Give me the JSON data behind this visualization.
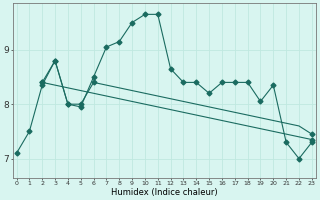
{
  "xlabel": "Humidex (Indice chaleur)",
  "background_color": "#d8f5f0",
  "grid_color": "#c0e8e0",
  "line_color": "#1a6b60",
  "x_ticks": [
    0,
    1,
    2,
    3,
    4,
    5,
    6,
    7,
    8,
    9,
    10,
    11,
    12,
    13,
    14,
    15,
    16,
    17,
    18,
    19,
    20,
    21,
    22,
    23
  ],
  "y_ticks": [
    7,
    8,
    9
  ],
  "ylim": [
    6.65,
    9.85
  ],
  "xlim": [
    -0.3,
    23.3
  ],
  "series1_x": [
    0,
    1,
    2,
    3,
    4,
    5,
    6,
    7,
    8,
    9,
    10,
    11,
    12,
    13,
    14,
    15,
    16,
    17,
    18,
    19,
    20,
    21,
    22,
    23
  ],
  "series1_y": [
    7.1,
    7.5,
    8.35,
    8.8,
    8.0,
    7.95,
    8.5,
    9.05,
    9.15,
    9.5,
    9.65,
    9.65,
    8.65,
    8.4,
    8.4,
    8.2,
    8.4,
    8.4,
    8.4,
    8.05,
    8.35,
    7.3,
    7.0,
    7.3
  ],
  "series2_x": [
    2,
    3,
    4,
    5,
    6,
    7,
    8,
    9,
    10,
    11,
    12,
    13,
    14,
    15,
    16,
    17,
    18,
    19,
    20,
    21,
    22,
    23
  ],
  "series2_y": [
    8.4,
    8.8,
    8.0,
    8.0,
    8.4,
    8.35,
    8.3,
    8.25,
    8.2,
    8.15,
    8.1,
    8.05,
    8.0,
    7.95,
    7.9,
    7.85,
    7.8,
    7.75,
    7.7,
    7.65,
    7.6,
    7.45
  ],
  "series3_x": [
    2,
    3,
    4,
    5,
    6,
    7,
    8,
    9,
    10,
    11,
    12,
    13,
    14,
    15,
    16,
    17,
    18,
    19,
    20,
    21,
    22,
    23
  ],
  "series3_y": [
    8.4,
    8.35,
    8.3,
    8.25,
    8.2,
    8.15,
    8.1,
    8.05,
    8.0,
    7.95,
    7.9,
    7.85,
    7.8,
    7.75,
    7.7,
    7.65,
    7.6,
    7.55,
    7.5,
    7.45,
    7.4,
    7.35
  ],
  "figsize": [
    3.2,
    2.0
  ],
  "dpi": 100
}
